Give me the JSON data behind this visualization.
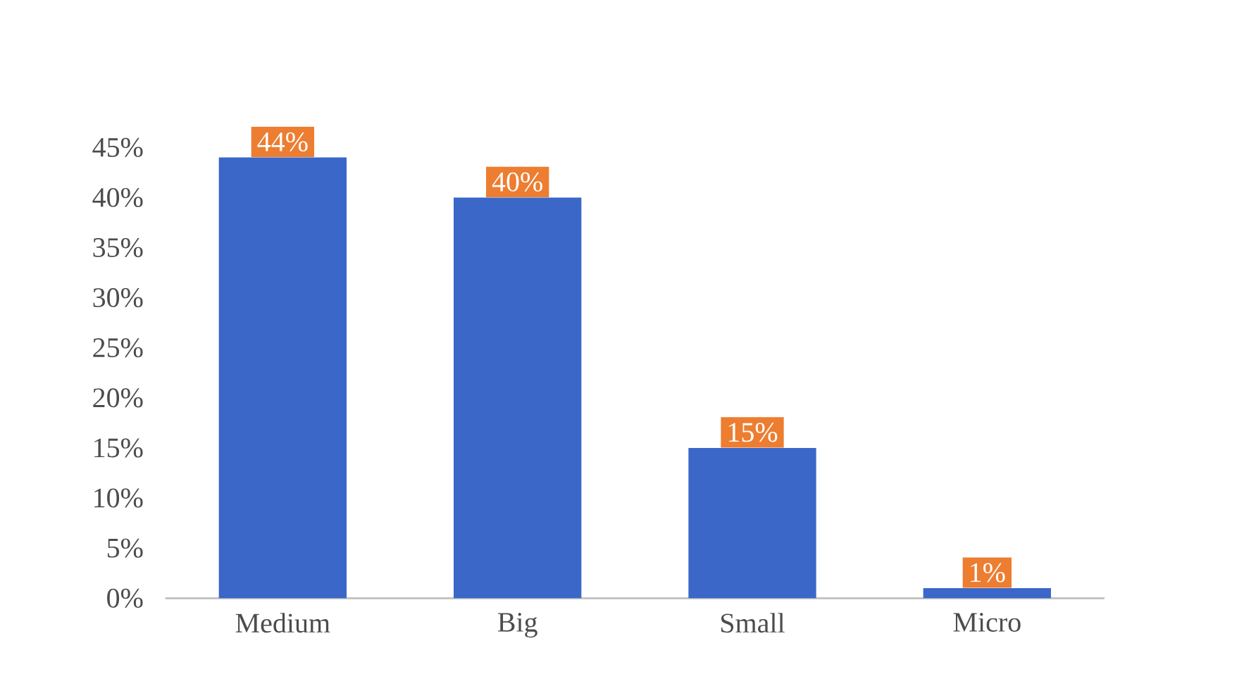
{
  "chart_data": {
    "type": "bar",
    "categories": [
      "Medium",
      "Big",
      "Small",
      "Micro"
    ],
    "values": [
      44,
      40,
      15,
      1
    ],
    "value_labels": [
      "44%",
      "40%",
      "15%",
      "1%"
    ],
    "color": "#3a67c8",
    "ylim": [
      0,
      45
    ],
    "yticks": [
      {
        "value": 0,
        "label": "0%"
      },
      {
        "value": 5,
        "label": "5%"
      },
      {
        "value": 10,
        "label": "10%"
      },
      {
        "value": 15,
        "label": "15%"
      },
      {
        "value": 20,
        "label": "20%"
      },
      {
        "value": 25,
        "label": "25%"
      },
      {
        "value": 30,
        "label": "30%"
      },
      {
        "value": 35,
        "label": "35%"
      },
      {
        "value": 40,
        "label": "40%"
      },
      {
        "value": 45,
        "label": "45%"
      }
    ],
    "grid": false
  }
}
